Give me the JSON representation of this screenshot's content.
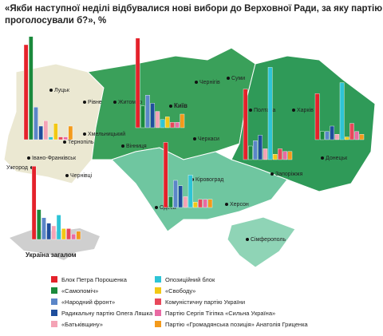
{
  "title_lines": [
    "«Якби наступної неділі відбувалися нові вибори до Верховної Ради, за яку партію Ви",
    "проголосували б?», %"
  ],
  "legend": [
    {
      "label": "Блок Петра Порошенка",
      "color": "#e4222b"
    },
    {
      "label": "«Самопоміч»",
      "color": "#1b8a3c"
    },
    {
      "label": "«Народний фронт»",
      "color": "#5b86c8"
    },
    {
      "label": "Радикальну партію Олега Ляшка",
      "color": "#1f4e9c"
    },
    {
      "label": "«Батьківщину»",
      "color": "#f4a3b5"
    },
    {
      "label": "Опозиційний блок",
      "color": "#2ec4d6"
    },
    {
      "label": "«Свободу»",
      "color": "#f2c814"
    },
    {
      "label": "Комуністичну партію України",
      "color": "#e8475a"
    },
    {
      "label": "Партію Сергія Тігіпка «Сильна Україна»",
      "color": "#e96aa3"
    },
    {
      "label": "Партію «Громадянська позиція» Анатолія Гриценка",
      "color": "#f39a1b"
    }
  ],
  "cities": [
    "Луцьк",
    "Рівне",
    "Тернопіль",
    "Івано-Франківськ",
    "Ужгород",
    "Чернівці",
    "Житомир",
    "Київ",
    "Хмельницький",
    "Вінниця",
    "Чернігів",
    "Суми",
    "Полтава",
    "Харків",
    "Черкаси",
    "Кіровоград",
    "Запоріжжя",
    "Донецьк",
    "Одеса",
    "Херсон",
    "Сімферополь"
  ],
  "overall_label": "Україна загалом",
  "charts": [
    {
      "values": [
        35,
        38,
        12,
        5,
        7,
        1,
        6,
        1,
        1,
        5
      ]
    },
    {
      "values": [
        33,
        8,
        12,
        9,
        6,
        3,
        4,
        2,
        2,
        5
      ]
    },
    {
      "values": [
        26,
        5,
        7,
        9,
        4,
        34,
        2,
        4,
        3,
        3
      ]
    },
    {
      "values": [
        17,
        3,
        3,
        5,
        2,
        21,
        1,
        6,
        3,
        2
      ]
    },
    {
      "values": [
        24,
        4,
        10,
        8,
        4,
        12,
        2,
        3,
        3,
        3
      ]
    },
    {
      "values": [
        27,
        11,
        8,
        6,
        5,
        9,
        4,
        4,
        2,
        3
      ]
    }
  ]
}
